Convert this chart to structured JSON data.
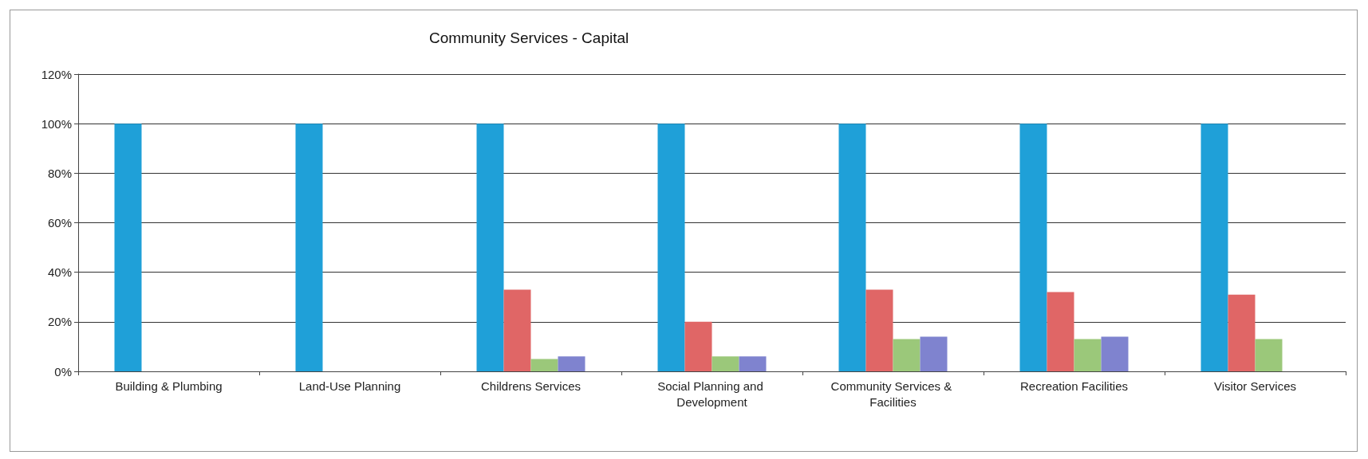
{
  "chart_data": {
    "type": "bar",
    "title": "Community Services - Capital",
    "categories": [
      "Building & Plumbing",
      "Land-Use Planning",
      "Childrens Services",
      "Social Planning and Development",
      "Community Services & Facilities",
      "Recreation Facilities",
      "Visitor Services"
    ],
    "series": [
      {
        "color": "#1fa0d8",
        "values": [
          100,
          100,
          100,
          100,
          100,
          100,
          100
        ]
      },
      {
        "color": "#e06666",
        "values": [
          0,
          0,
          33,
          20,
          33,
          32,
          31
        ]
      },
      {
        "color": "#9bc87a",
        "values": [
          0,
          0,
          5,
          6,
          13,
          13,
          13
        ]
      },
      {
        "color": "#7f83cf",
        "values": [
          0,
          0,
          6,
          6,
          14,
          14,
          0
        ]
      }
    ],
    "ylim": [
      0,
      120
    ],
    "yticks": [
      {
        "value": 0,
        "label": "0%"
      },
      {
        "value": 20,
        "label": "20%"
      },
      {
        "value": 40,
        "label": "40%"
      },
      {
        "value": 60,
        "label": "60%"
      },
      {
        "value": 80,
        "label": "80%"
      },
      {
        "value": 100,
        "label": "100%"
      },
      {
        "value": 120,
        "label": "120%"
      }
    ],
    "grid": "y"
  }
}
